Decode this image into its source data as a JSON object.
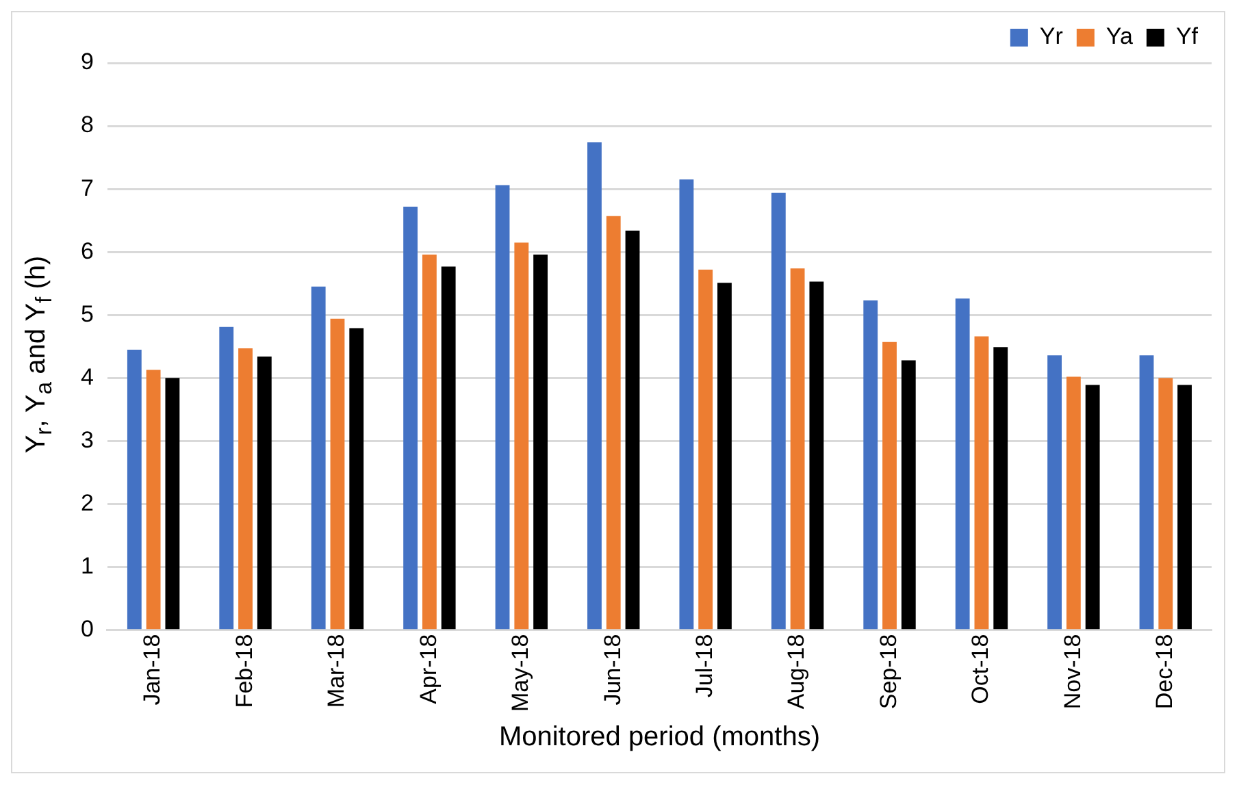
{
  "chart_data": {
    "type": "bar",
    "xlabel": "Monitored period (months)",
    "ylabel": "Y$_{r}$, Y$_{a}$ and Y$_{f}$ (h)",
    "categories": [
      "Jan-18",
      "Feb-18",
      "Mar-18",
      "Apr-18",
      "May-18",
      "Jun-18",
      "Jul-18",
      "Aug-18",
      "Sep-18",
      "Oct-18",
      "Nov-18",
      "Dec-18"
    ],
    "series": [
      {
        "name": "Yr",
        "color": "#4472c4",
        "values": [
          4.45,
          4.81,
          5.45,
          6.72,
          7.06,
          7.74,
          7.15,
          6.94,
          5.23,
          5.26,
          4.36,
          4.36
        ]
      },
      {
        "name": "Ya",
        "color": "#ed7d31",
        "values": [
          4.13,
          4.47,
          4.94,
          5.96,
          6.15,
          6.57,
          5.72,
          5.74,
          4.57,
          4.66,
          4.02,
          4.0
        ]
      },
      {
        "name": "Yf",
        "color": "#000000",
        "values": [
          4.0,
          4.34,
          4.79,
          5.77,
          5.96,
          6.34,
          5.51,
          5.53,
          4.28,
          4.49,
          3.89,
          3.89
        ]
      }
    ],
    "ylim": [
      0,
      9
    ],
    "yticks": [
      0,
      1,
      2,
      3,
      4,
      5,
      6,
      7,
      8,
      9
    ],
    "grid": "y",
    "legend": "top right"
  }
}
